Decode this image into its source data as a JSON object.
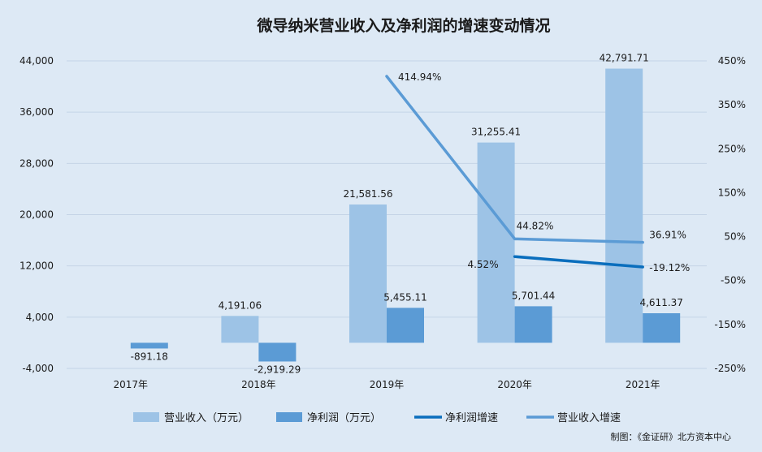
{
  "chart_data": {
    "type": "bar",
    "title": "微导纳米营业收入及净利润的增速变动情况",
    "categories": [
      "2017年",
      "2018年",
      "2019年",
      "2020年",
      "2021年"
    ],
    "y_left": {
      "ticks": [
        "44,000",
        "36,000",
        "28,000",
        "20,000",
        "12,000",
        "4,000",
        "-4,000"
      ],
      "range": [
        -4000,
        44000
      ]
    },
    "y_right": {
      "ticks": [
        "450%",
        "350%",
        "250%",
        "150%",
        "50%",
        "-50%",
        "-150%",
        "-250%"
      ],
      "range": [
        -250,
        450
      ]
    },
    "bar_series": [
      {
        "name": "营业收入（万元）",
        "color": "#9dc3e6",
        "values": [
          null,
          4191.06,
          21581.56,
          31255.41,
          42791.71
        ],
        "labels": [
          "",
          "4,191.06",
          "21,581.56",
          "31,255.41",
          "42,791.71"
        ]
      },
      {
        "name": "净利润（万元）",
        "color": "#5b9bd5",
        "values": [
          -891.18,
          -2919.29,
          5455.11,
          5701.44,
          4611.37
        ],
        "labels": [
          "-891.18",
          "-2,919.29",
          "5,455.11",
          "5,701.44",
          "4,611.37"
        ]
      }
    ],
    "line_series": [
      {
        "name": "净利润增速",
        "color": "#0a6ebd",
        "values": [
          null,
          null,
          null,
          4.52,
          -19.12
        ],
        "labels": [
          "",
          "",
          "",
          "4.52%",
          "-19.12%"
        ]
      },
      {
        "name": "营业收入增速",
        "color": "#5b9bd5",
        "values": [
          null,
          null,
          414.94,
          44.82,
          36.91
        ],
        "labels": [
          "",
          "",
          "414.94%",
          "44.82%",
          "36.91%"
        ]
      }
    ],
    "legend_position": "bottom"
  },
  "credit": "制图：《金证研》北方资本中心"
}
